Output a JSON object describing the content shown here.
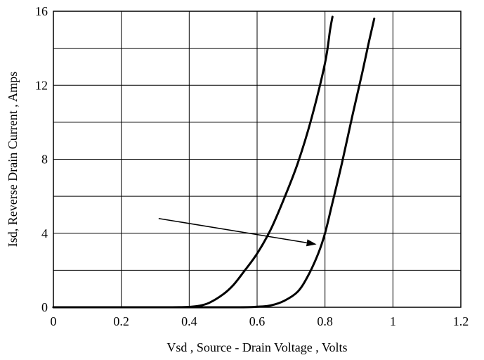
{
  "chart_data": {
    "type": "line",
    "title": "",
    "xlabel": "Vsd , Source - Drain Voltage , Volts",
    "ylabel": "Isd, Reverse Drain Current , Amps",
    "xlim": [
      0,
      1.2
    ],
    "ylim": [
      0,
      16
    ],
    "x_ticks": [
      0,
      0.2,
      0.4,
      0.6,
      0.8,
      1.0,
      1.2
    ],
    "x_tick_labels": [
      "0",
      "0.2",
      "0.4",
      "0.6",
      "0.8",
      "1",
      "1.2"
    ],
    "y_ticks": [
      0,
      4,
      8,
      12,
      16
    ],
    "y_tick_labels": [
      "0",
      "4",
      "8",
      "12",
      "16"
    ],
    "grid": true,
    "grid_x_step": 0.2,
    "grid_y_step": 2,
    "series": [
      {
        "points": [
          [
            0,
            0
          ],
          [
            0.2,
            0
          ],
          [
            0.35,
            0
          ],
          [
            0.4,
            0.02
          ],
          [
            0.43,
            0.08
          ],
          [
            0.46,
            0.25
          ],
          [
            0.5,
            0.7
          ],
          [
            0.53,
            1.2
          ],
          [
            0.56,
            1.9
          ],
          [
            0.6,
            2.9
          ],
          [
            0.64,
            4.2
          ],
          [
            0.68,
            5.9
          ],
          [
            0.72,
            7.8
          ],
          [
            0.76,
            10.2
          ],
          [
            0.8,
            13.2
          ],
          [
            0.815,
            15.0
          ],
          [
            0.822,
            15.7
          ]
        ]
      },
      {
        "points": [
          [
            0,
            0
          ],
          [
            0.3,
            0
          ],
          [
            0.55,
            0
          ],
          [
            0.6,
            0.03
          ],
          [
            0.64,
            0.1
          ],
          [
            0.68,
            0.35
          ],
          [
            0.72,
            0.85
          ],
          [
            0.75,
            1.7
          ],
          [
            0.78,
            2.9
          ],
          [
            0.8,
            4.0
          ],
          [
            0.82,
            5.5
          ],
          [
            0.85,
            7.8
          ],
          [
            0.88,
            10.3
          ],
          [
            0.91,
            12.7
          ],
          [
            0.93,
            14.4
          ],
          [
            0.945,
            15.6
          ]
        ]
      }
    ],
    "annotations": [
      {
        "type": "arrow",
        "from": [
          0.31,
          4.8
        ],
        "to": [
          0.775,
          3.4
        ]
      }
    ]
  }
}
